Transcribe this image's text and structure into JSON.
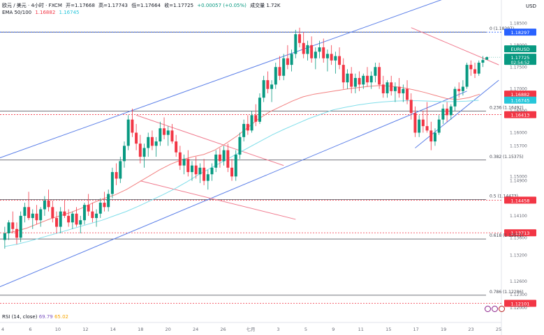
{
  "header": {
    "symbol_line": "欧元 / 美元 · 4小时 · FXCM",
    "open_label": "开=1.17668",
    "high_label": "高=1.17743",
    "low_label": "低=1.17664",
    "close_label": "收=1.17725",
    "change_label": "+0.00057 (+0.05%)",
    "volume_label": "成交量 1.72K",
    "ema_label": "EMA 50/100",
    "ema_fast_value": "1.16882",
    "ema_slow_value": "1.16745"
  },
  "currency": "USD",
  "rsi": {
    "label": "RSI (14, close)",
    "value1": "69.79",
    "value2": "65.02"
  },
  "chart_data": {
    "type": "candlestick",
    "symbol": "EURUSD",
    "timeframe": "4小时",
    "ylim": [
      1.1195,
      1.1865
    ],
    "price_ticks": [
      "1.18500",
      "1.18000",
      "1.17500",
      "1.17000",
      "1.16500",
      "1.16000",
      "1.15700",
      "1.15000",
      "1.14900",
      "1.14100",
      "1.13600",
      "1.13200",
      "1.12600",
      "1.12300",
      "1.12000"
    ],
    "x_ticks": [
      "4",
      "6",
      "10",
      "12",
      "14",
      "18",
      "20",
      "24",
      "26",
      "七月",
      "3",
      "5",
      "9",
      "11",
      "15",
      "17",
      "19",
      "23",
      "25"
    ],
    "candles": [
      [
        1.1355,
        1.1385,
        1.1335,
        1.137
      ],
      [
        1.137,
        1.14,
        1.1355,
        1.1395
      ],
      [
        1.1395,
        1.142,
        1.137,
        1.138
      ],
      [
        1.138,
        1.1395,
        1.1345,
        1.136
      ],
      [
        1.136,
        1.142,
        1.135,
        1.141
      ],
      [
        1.141,
        1.144,
        1.1395,
        1.143
      ],
      [
        1.143,
        1.1465,
        1.14,
        1.1405
      ],
      [
        1.1405,
        1.1425,
        1.138,
        1.1415
      ],
      [
        1.1415,
        1.1435,
        1.139,
        1.14
      ],
      [
        1.14,
        1.143,
        1.1385,
        1.1425
      ],
      [
        1.1425,
        1.1455,
        1.141,
        1.1445
      ],
      [
        1.1445,
        1.147,
        1.142,
        1.143
      ],
      [
        1.143,
        1.1445,
        1.1395,
        1.1405
      ],
      [
        1.1405,
        1.142,
        1.137,
        1.1385
      ],
      [
        1.1385,
        1.143,
        1.137,
        1.142
      ],
      [
        1.142,
        1.1445,
        1.1405,
        1.141
      ],
      [
        1.141,
        1.1425,
        1.1385,
        1.1395
      ],
      [
        1.1395,
        1.142,
        1.138,
        1.1415
      ],
      [
        1.1415,
        1.143,
        1.1385,
        1.139
      ],
      [
        1.139,
        1.141,
        1.137,
        1.14
      ],
      [
        1.14,
        1.144,
        1.139,
        1.1435
      ],
      [
        1.1435,
        1.146,
        1.141,
        1.142
      ],
      [
        1.142,
        1.144,
        1.1395,
        1.1405
      ],
      [
        1.1405,
        1.1425,
        1.1385,
        1.1415
      ],
      [
        1.1415,
        1.145,
        1.1405,
        1.144
      ],
      [
        1.144,
        1.1465,
        1.142,
        1.143
      ],
      [
        1.143,
        1.147,
        1.142,
        1.146
      ],
      [
        1.146,
        1.152,
        1.145,
        1.151
      ],
      [
        1.151,
        1.153,
        1.148,
        1.1495
      ],
      [
        1.1495,
        1.1545,
        1.1485,
        1.1535
      ],
      [
        1.1535,
        1.158,
        1.152,
        1.157
      ],
      [
        1.157,
        1.164,
        1.156,
        1.163
      ],
      [
        1.163,
        1.1655,
        1.159,
        1.16
      ],
      [
        1.16,
        1.162,
        1.156,
        1.1575
      ],
      [
        1.1575,
        1.1595,
        1.153,
        1.1545
      ],
      [
        1.1545,
        1.1575,
        1.152,
        1.1565
      ],
      [
        1.1565,
        1.16,
        1.1545,
        1.159
      ],
      [
        1.159,
        1.1605,
        1.156,
        1.157
      ],
      [
        1.157,
        1.159,
        1.1545,
        1.158
      ],
      [
        1.158,
        1.1625,
        1.157,
        1.161
      ],
      [
        1.161,
        1.1635,
        1.1585,
        1.1595
      ],
      [
        1.1595,
        1.1615,
        1.157,
        1.1605
      ],
      [
        1.1605,
        1.162,
        1.1575,
        1.158
      ],
      [
        1.158,
        1.1595,
        1.1545,
        1.1555
      ],
      [
        1.1555,
        1.157,
        1.1515,
        1.1525
      ],
      [
        1.1525,
        1.155,
        1.1505,
        1.154
      ],
      [
        1.154,
        1.156,
        1.15,
        1.151
      ],
      [
        1.151,
        1.1535,
        1.149,
        1.1525
      ],
      [
        1.1525,
        1.1545,
        1.1495,
        1.1505
      ],
      [
        1.1505,
        1.153,
        1.1485,
        1.152
      ],
      [
        1.152,
        1.154,
        1.148,
        1.149
      ],
      [
        1.149,
        1.1515,
        1.147,
        1.1505
      ],
      [
        1.1505,
        1.153,
        1.149,
        1.152
      ],
      [
        1.152,
        1.156,
        1.151,
        1.155
      ],
      [
        1.155,
        1.1565,
        1.152,
        1.1535
      ],
      [
        1.1535,
        1.157,
        1.1525,
        1.156
      ],
      [
        1.156,
        1.1575,
        1.151,
        1.152
      ],
      [
        1.152,
        1.154,
        1.149,
        1.15
      ],
      [
        1.15,
        1.156,
        1.149,
        1.155
      ],
      [
        1.155,
        1.16,
        1.154,
        1.159
      ],
      [
        1.159,
        1.163,
        1.158,
        1.162
      ],
      [
        1.162,
        1.164,
        1.1595,
        1.1605
      ],
      [
        1.1605,
        1.165,
        1.16,
        1.164
      ],
      [
        1.164,
        1.1665,
        1.1615,
        1.1625
      ],
      [
        1.1625,
        1.169,
        1.162,
        1.168
      ],
      [
        1.168,
        1.173,
        1.167,
        1.172
      ],
      [
        1.172,
        1.174,
        1.169,
        1.17
      ],
      [
        1.17,
        1.172,
        1.167,
        1.171
      ],
      [
        1.171,
        1.176,
        1.17,
        1.175
      ],
      [
        1.175,
        1.1775,
        1.172,
        1.173
      ],
      [
        1.173,
        1.178,
        1.172,
        1.177
      ],
      [
        1.177,
        1.18,
        1.1745,
        1.1755
      ],
      [
        1.1755,
        1.179,
        1.174,
        1.178
      ],
      [
        1.178,
        1.1835,
        1.177,
        1.1825
      ],
      [
        1.1825,
        1.184,
        1.1795,
        1.1805
      ],
      [
        1.1805,
        1.183,
        1.177,
        1.178
      ],
      [
        1.178,
        1.181,
        1.1765,
        1.18
      ],
      [
        1.18,
        1.182,
        1.176,
        1.177
      ],
      [
        1.177,
        1.1795,
        1.1745,
        1.1785
      ],
      [
        1.1785,
        1.181,
        1.177,
        1.1795
      ],
      [
        1.1795,
        1.1815,
        1.176,
        1.177
      ],
      [
        1.177,
        1.179,
        1.174,
        1.178
      ],
      [
        1.178,
        1.18,
        1.1755,
        1.1765
      ],
      [
        1.1765,
        1.1785,
        1.1735,
        1.1775
      ],
      [
        1.1775,
        1.1795,
        1.1745,
        1.1755
      ],
      [
        1.1755,
        1.177,
        1.17,
        1.1715
      ],
      [
        1.1715,
        1.1745,
        1.17,
        1.1735
      ],
      [
        1.1735,
        1.175,
        1.169,
        1.1705
      ],
      [
        1.1705,
        1.1735,
        1.169,
        1.1725
      ],
      [
        1.1725,
        1.174,
        1.1695,
        1.171
      ],
      [
        1.171,
        1.1735,
        1.17,
        1.173
      ],
      [
        1.173,
        1.175,
        1.1705,
        1.1715
      ],
      [
        1.1715,
        1.174,
        1.17,
        1.173
      ],
      [
        1.173,
        1.176,
        1.1715,
        1.175
      ],
      [
        1.175,
        1.176,
        1.17,
        1.171
      ],
      [
        1.171,
        1.173,
        1.168,
        1.169
      ],
      [
        1.169,
        1.172,
        1.168,
        1.1715
      ],
      [
        1.1715,
        1.173,
        1.1685,
        1.1695
      ],
      [
        1.1695,
        1.1715,
        1.167,
        1.1705
      ],
      [
        1.1705,
        1.1725,
        1.168,
        1.169
      ],
      [
        1.169,
        1.171,
        1.167,
        1.17
      ],
      [
        1.17,
        1.172,
        1.1665,
        1.1675
      ],
      [
        1.1675,
        1.169,
        1.163,
        1.1645
      ],
      [
        1.1645,
        1.166,
        1.159,
        1.16
      ],
      [
        1.16,
        1.164,
        1.159,
        1.163
      ],
      [
        1.163,
        1.165,
        1.16,
        1.1615
      ],
      [
        1.1615,
        1.167,
        1.16,
        1.1605
      ],
      [
        1.1605,
        1.1625,
        1.156,
        1.158
      ],
      [
        1.158,
        1.161,
        1.157,
        1.16
      ],
      [
        1.16,
        1.164,
        1.1595,
        1.163
      ],
      [
        1.163,
        1.1665,
        1.162,
        1.1655
      ],
      [
        1.1655,
        1.167,
        1.1625,
        1.164
      ],
      [
        1.164,
        1.1665,
        1.163,
        1.166
      ],
      [
        1.166,
        1.1705,
        1.165,
        1.17
      ],
      [
        1.17,
        1.1715,
        1.168,
        1.1695
      ],
      [
        1.1695,
        1.172,
        1.1685,
        1.1705
      ],
      [
        1.1705,
        1.176,
        1.17,
        1.1755
      ],
      [
        1.1755,
        1.1765,
        1.173,
        1.1745
      ],
      [
        1.1745,
        1.176,
        1.1725,
        1.1735
      ],
      [
        1.1735,
        1.1765,
        1.173,
        1.176
      ],
      [
        1.176,
        1.1775,
        1.175,
        1.1766
      ],
      [
        1.17668,
        1.17743,
        1.17664,
        1.17725
      ]
    ],
    "ema50": [
      1.137,
      1.1375,
      1.1382,
      1.1392,
      1.1402,
      1.141,
      1.1418,
      1.1428,
      1.144,
      1.145,
      1.1458,
      1.147,
      1.1485,
      1.15,
      1.1515,
      1.1528,
      1.1538,
      1.1545,
      1.155,
      1.156,
      1.1575,
      1.1592,
      1.1612,
      1.1632,
      1.1648,
      1.166,
      1.1672,
      1.1682,
      1.1688,
      1.1692,
      1.1696,
      1.17,
      1.1703,
      1.1706,
      1.1708,
      1.1706,
      1.1703,
      1.1698,
      1.1692,
      1.1685,
      1.1678,
      1.1676,
      1.168,
      1.1688
    ],
    "ema100": [
      1.134,
      1.1345,
      1.1352,
      1.136,
      1.1368,
      1.1376,
      1.1384,
      1.1392,
      1.14,
      1.141,
      1.142,
      1.1432,
      1.1445,
      1.1458,
      1.1472,
      1.1488,
      1.1505,
      1.152,
      1.1535,
      1.155,
      1.1565,
      1.158,
      1.1595,
      1.1608,
      1.162,
      1.1632,
      1.1642,
      1.1652,
      1.1658,
      1.1663,
      1.1667,
      1.167,
      1.1672,
      1.1673,
      1.1673,
      1.1672,
      1.1671,
      1.1671,
      1.1672,
      1.1674
    ],
    "horizontal_levels": [
      {
        "price": 1.18297,
        "label": "0 (1.18297)",
        "badge": "1.18297",
        "color": "#2962ff"
      },
      {
        "price": 1.16492,
        "label": "0.236 (1.16492)"
      },
      {
        "price": 1.16413,
        "badge": "1.16413",
        "color": "#f23645"
      },
      {
        "price": 1.15375,
        "label": "0.382 (1.15375)"
      },
      {
        "price": 1.14473,
        "label": "0.5 (1.14473)"
      },
      {
        "price": 1.14458,
        "badge": "1.14458",
        "color": "#f23645"
      },
      {
        "price": 1.13713,
        "badge": "1.13713",
        "color": "#f23645"
      },
      {
        "price": 1.13571,
        "label": "0.618 (1.13571)"
      },
      {
        "price": 1.12286,
        "label": "0.786 (1.12286)"
      },
      {
        "price": 1.12101,
        "badge": "1.12101",
        "color": "#f23645"
      }
    ],
    "price_badges": [
      {
        "text": "EURUSD",
        "color": "#089981"
      },
      {
        "text": "1.17725",
        "sub": "02:54:52",
        "color": "#089981"
      },
      {
        "text": "1.16882",
        "color": "#f23645"
      },
      {
        "text": "1.16745",
        "color": "#26c6da"
      }
    ],
    "colors": {
      "up": "#089981",
      "down": "#f23645",
      "ema50": "#f28080",
      "ema100": "#80deea",
      "channel": "#5b7fe8",
      "wedge": "#f07a8e"
    }
  }
}
